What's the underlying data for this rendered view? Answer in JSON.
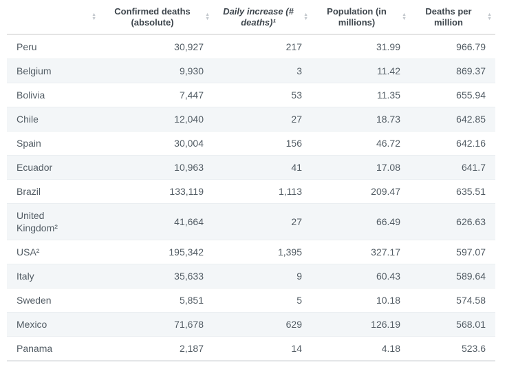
{
  "table": {
    "columns": [
      {
        "label": ""
      },
      {
        "label": "Confirmed deaths (absolute)"
      },
      {
        "label": "Daily increase (# deaths)¹"
      },
      {
        "label": "Population (in millions)"
      },
      {
        "label": "Deaths per million"
      }
    ],
    "rows": [
      {
        "country": "Peru",
        "confirmed": "30,927",
        "daily": "217",
        "population": "31.99",
        "per_million": "966.79"
      },
      {
        "country": "Belgium",
        "confirmed": "9,930",
        "daily": "3",
        "population": "11.42",
        "per_million": "869.37"
      },
      {
        "country": "Bolivia",
        "confirmed": "7,447",
        "daily": "53",
        "population": "11.35",
        "per_million": "655.94"
      },
      {
        "country": "Chile",
        "confirmed": "12,040",
        "daily": "27",
        "population": "18.73",
        "per_million": "642.85"
      },
      {
        "country": "Spain",
        "confirmed": "30,004",
        "daily": "156",
        "population": "46.72",
        "per_million": "642.16"
      },
      {
        "country": "Ecuador",
        "confirmed": "10,963",
        "daily": "41",
        "population": "17.08",
        "per_million": "641.7"
      },
      {
        "country": "Brazil",
        "confirmed": "133,119",
        "daily": "1,113",
        "population": "209.47",
        "per_million": "635.51"
      },
      {
        "country": "United Kingdom²",
        "confirmed": "41,664",
        "daily": "27",
        "population": "66.49",
        "per_million": "626.63"
      },
      {
        "country": "USA²",
        "confirmed": "195,342",
        "daily": "1,395",
        "population": "327.17",
        "per_million": "597.07"
      },
      {
        "country": "Italy",
        "confirmed": "35,633",
        "daily": "9",
        "population": "60.43",
        "per_million": "589.64"
      },
      {
        "country": "Sweden",
        "confirmed": "5,851",
        "daily": "5",
        "population": "10.18",
        "per_million": "574.58"
      },
      {
        "country": "Mexico",
        "confirmed": "71,678",
        "daily": "629",
        "population": "126.19",
        "per_million": "568.01"
      },
      {
        "country": "Panama",
        "confirmed": "2,187",
        "daily": "14",
        "population": "4.18",
        "per_million": "523.6"
      }
    ]
  },
  "icons": {
    "sort_up": "▲",
    "sort_down": "▼"
  }
}
